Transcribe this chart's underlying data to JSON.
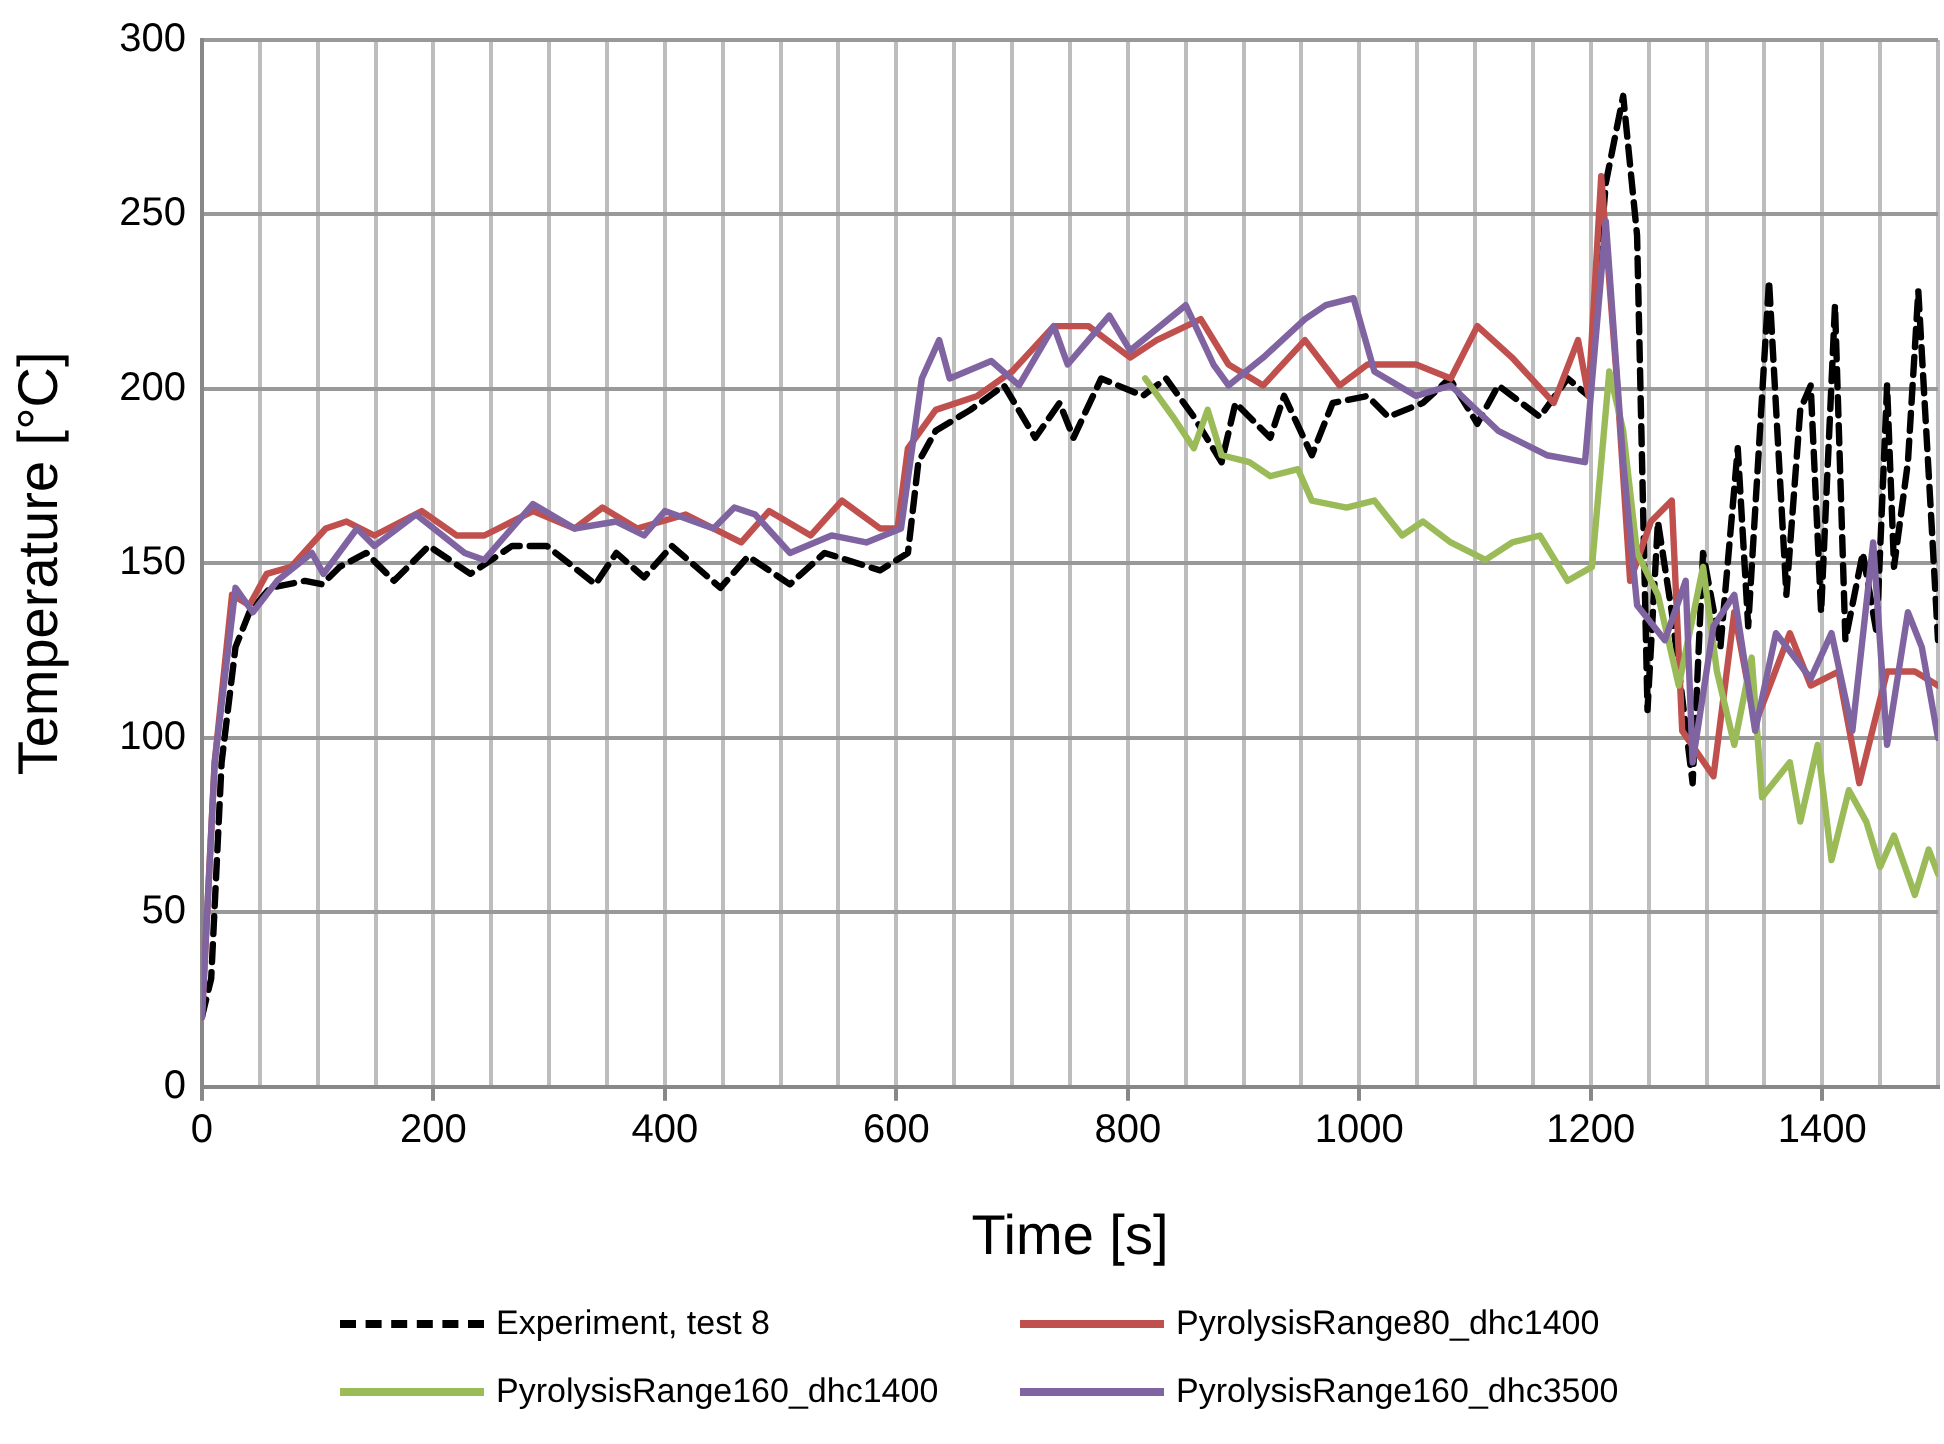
{
  "chart_data": {
    "type": "line",
    "xlabel": "Time [s]",
    "ylabel": "Temperature [°C]",
    "xlim": [
      0,
      1500
    ],
    "xticks": [
      0,
      {
        "value": 50,
        "label": null
      },
      {
        "value": 100,
        "label": null
      },
      {
        "value": 150,
        "label": null
      },
      200,
      {
        "value": 250,
        "label": null
      },
      {
        "value": 300,
        "label": null
      },
      {
        "value": 350,
        "label": null
      },
      400,
      {
        "value": 450,
        "label": null
      },
      {
        "value": 500,
        "label": null
      },
      {
        "value": 550,
        "label": null
      },
      600,
      {
        "value": 650,
        "label": null
      },
      {
        "value": 700,
        "label": null
      },
      {
        "value": 750,
        "label": null
      },
      800,
      {
        "value": 850,
        "label": null
      },
      {
        "value": 900,
        "label": null
      },
      {
        "value": 950,
        "label": null
      },
      1000,
      {
        "value": 1050,
        "label": null
      },
      {
        "value": 1100,
        "label": null
      },
      {
        "value": 1150,
        "label": null
      },
      1200,
      {
        "value": 1250,
        "label": null
      },
      {
        "value": 1300,
        "label": null
      },
      {
        "value": 1350,
        "label": null
      },
      1400,
      {
        "value": 1450,
        "label": null
      },
      {
        "value": 1500,
        "label": null
      }
    ],
    "ylim": [
      0,
      300
    ],
    "yticks": [
      0,
      50,
      100,
      150,
      200,
      250,
      300
    ],
    "grid": true,
    "legend": "bottom",
    "marker": "none",
    "series": [
      {
        "name": "Experiment, test 8",
        "color": "#000000",
        "line_style": "dashed",
        "x": [
          0,
          8,
          17,
          29,
          41,
          59,
          89,
          104,
          119,
          142,
          166,
          196,
          232,
          268,
          298,
          340,
          358,
          382,
          406,
          448,
          472,
          508,
          538,
          586,
          610,
          619,
          634,
          664,
          693,
          720,
          741,
          753,
          777,
          813,
          833,
          857,
          881,
          893,
          923,
          935,
          959,
          977,
          1007,
          1025,
          1055,
          1078,
          1102,
          1120,
          1156,
          1180,
          1198,
          1213,
          1228,
          1240,
          1249,
          1258,
          1270,
          1288,
          1297,
          1312,
          1327,
          1336,
          1354,
          1369,
          1381,
          1390,
          1399,
          1411,
          1420,
          1435,
          1447,
          1456,
          1462,
          1474,
          1483,
          1495,
          1500
        ],
        "values": [
          20,
          31,
          93,
          126,
          136,
          143,
          145,
          144,
          149,
          153,
          145,
          155,
          147,
          155,
          155,
          144,
          153,
          146,
          155,
          143,
          152,
          144,
          153,
          148,
          153,
          179,
          188,
          194,
          201,
          186,
          196,
          186,
          203,
          198,
          203,
          192,
          179,
          196,
          186,
          198,
          181,
          196,
          198,
          192,
          196,
          203,
          190,
          201,
          192,
          203,
          198,
          259,
          284,
          244,
          108,
          162,
          136,
          87,
          153,
          126,
          183,
          132,
          231,
          141,
          194,
          201,
          136,
          224,
          128,
          153,
          130,
          201,
          149,
          179,
          228,
          158,
          128
        ]
      },
      {
        "name": "PyrolysisRange80_dhc1400",
        "color": "#c0504d",
        "line_style": "solid",
        "x": [
          0,
          11,
          26,
          41,
          56,
          77,
          107,
          125,
          149,
          190,
          220,
          244,
          286,
          322,
          346,
          376,
          418,
          466,
          490,
          526,
          553,
          586,
          601,
          610,
          634,
          670,
          700,
          736,
          766,
          802,
          825,
          863,
          887,
          917,
          953,
          983,
          1007,
          1049,
          1079,
          1102,
          1132,
          1168,
          1189,
          1198,
          1209,
          1222,
          1234,
          1252,
          1270,
          1279,
          1306,
          1324,
          1342,
          1372,
          1390,
          1414,
          1432,
          1456,
          1480,
          1500
        ],
        "values": [
          20,
          93,
          141,
          138,
          147,
          149,
          160,
          162,
          158,
          165,
          158,
          158,
          165,
          160,
          166,
          160,
          164,
          156,
          165,
          158,
          168,
          160,
          160,
          183,
          194,
          198,
          205,
          218,
          218,
          209,
          214,
          220,
          207,
          201,
          214,
          201,
          207,
          207,
          203,
          218,
          209,
          196,
          214,
          198,
          261,
          205,
          145,
          162,
          168,
          102,
          89,
          136,
          104,
          130,
          115,
          119,
          87,
          119,
          119,
          115
        ]
      },
      {
        "name": "PyrolysisRange160_dhc1400",
        "color": "#9bbb59",
        "line_style": "solid",
        "x": [
          815,
          839,
          857,
          869,
          881,
          905,
          923,
          947,
          959,
          989,
          1013,
          1037,
          1055,
          1079,
          1109,
          1132,
          1156,
          1180,
          1201,
          1216,
          1228,
          1240,
          1258,
          1276,
          1297,
          1309,
          1324,
          1339,
          1348,
          1372,
          1381,
          1396,
          1408,
          1423,
          1438,
          1450,
          1462,
          1480,
          1492,
          1500
        ],
        "values": [
          203,
          192,
          183,
          194,
          181,
          179,
          175,
          177,
          168,
          166,
          168,
          158,
          162,
          156,
          151,
          156,
          158,
          145,
          149,
          205,
          188,
          153,
          141,
          115,
          149,
          119,
          98,
          123,
          83,
          93,
          76,
          98,
          65,
          85,
          76,
          63,
          72,
          55,
          68,
          61
        ]
      },
      {
        "name": "PyrolysisRange160_dhc3500",
        "color": "#8064a2",
        "line_style": "solid",
        "x": [
          0,
          11,
          29,
          44,
          65,
          95,
          105,
          134,
          149,
          185,
          227,
          244,
          286,
          322,
          358,
          382,
          400,
          442,
          460,
          478,
          508,
          544,
          574,
          604,
          622,
          637,
          646,
          682,
          706,
          736,
          748,
          784,
          802,
          850,
          874,
          887,
          917,
          953,
          971,
          995,
          1013,
          1049,
          1079,
          1120,
          1162,
          1195,
          1213,
          1228,
          1240,
          1264,
          1282,
          1288,
          1306,
          1324,
          1342,
          1360,
          1390,
          1408,
          1426,
          1444,
          1456,
          1474,
          1486,
          1500
        ],
        "values": [
          20,
          93,
          143,
          136,
          145,
          153,
          147,
          160,
          155,
          164,
          153,
          151,
          167,
          160,
          162,
          158,
          165,
          160,
          166,
          164,
          153,
          158,
          156,
          160,
          203,
          214,
          203,
          208,
          201,
          218,
          207,
          221,
          211,
          224,
          207,
          201,
          209,
          220,
          224,
          226,
          205,
          198,
          201,
          188,
          181,
          179,
          248,
          179,
          138,
          128,
          145,
          93,
          132,
          141,
          102,
          130,
          117,
          130,
          102,
          156,
          98,
          136,
          126,
          100
        ]
      }
    ]
  }
}
